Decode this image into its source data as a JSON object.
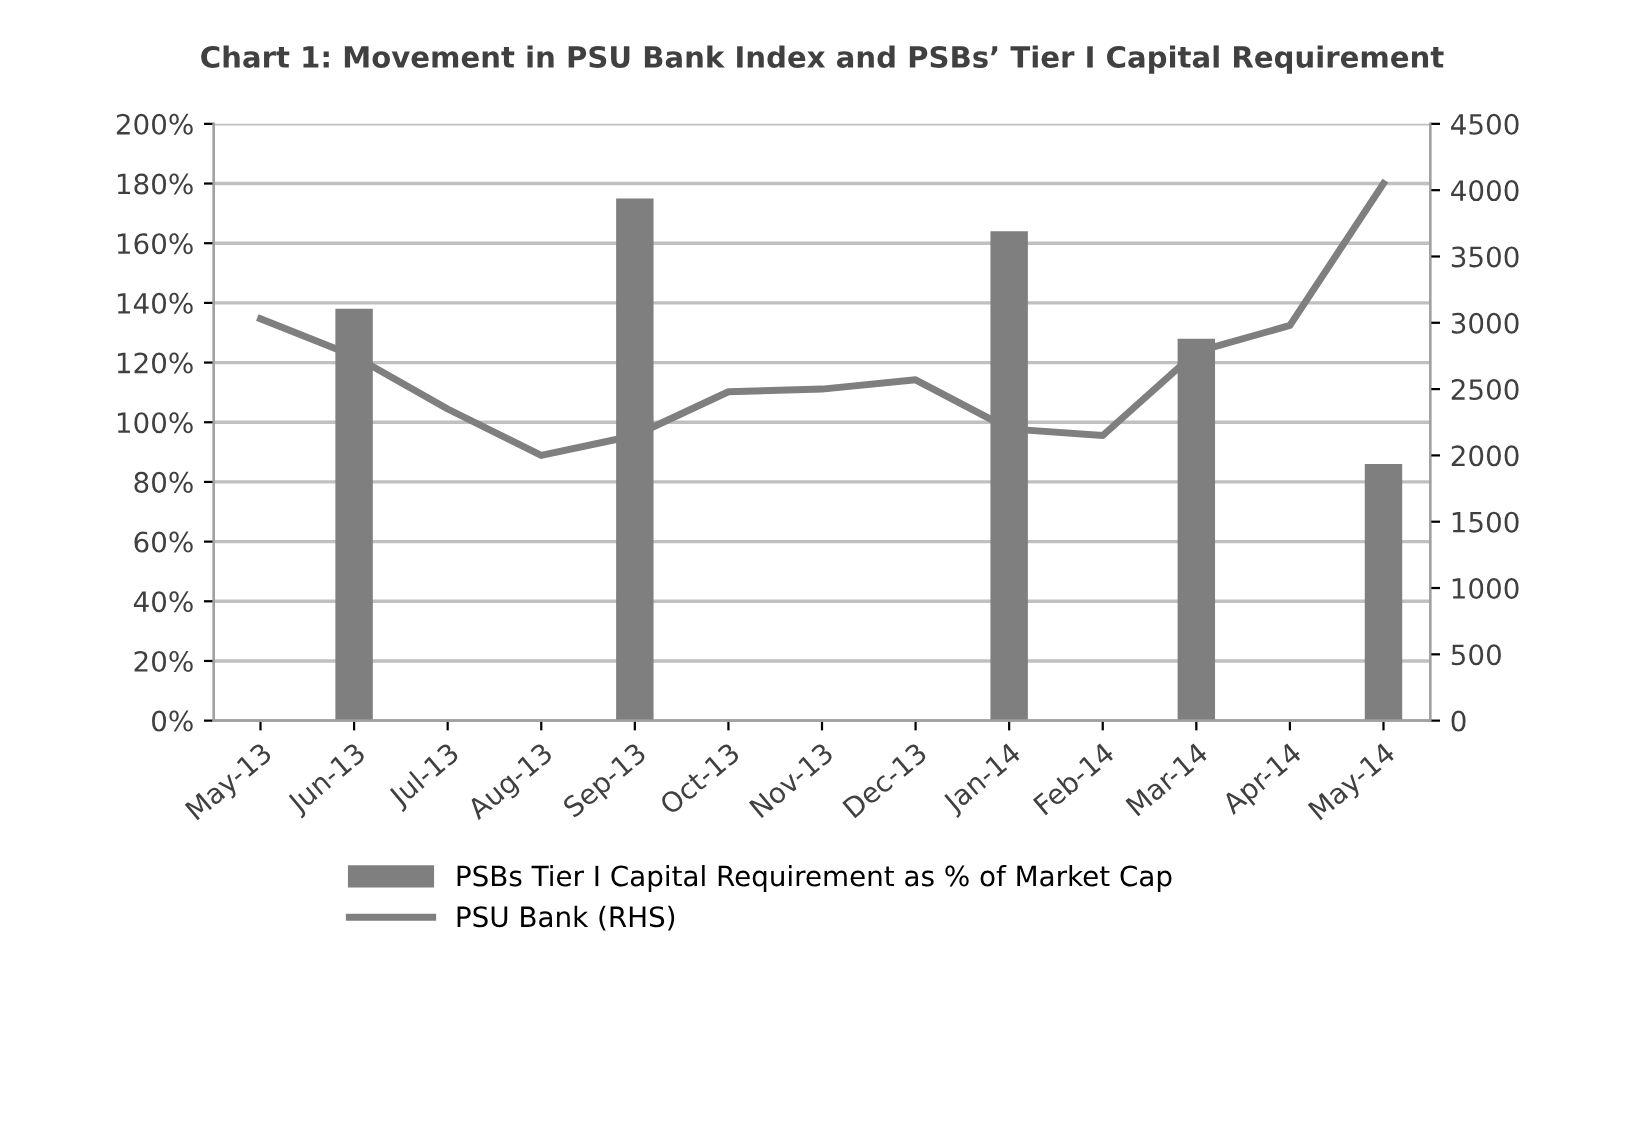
{
  "chart_data": {
    "type": "bar",
    "title": "Chart 1: Movement in PSU Bank Index and PSBs’ Tier I Capital Requirement",
    "categories": [
      "May-13",
      "Jun-13",
      "Jul-13",
      "Aug-13",
      "Sep-13",
      "Oct-13",
      "Nov-13",
      "Dec-13",
      "Jan-14",
      "Feb-14",
      "Mar-14",
      "Apr-14",
      "May-14"
    ],
    "series": [
      {
        "name": "PSBs Tier I Capital Requirement as % of Market Cap",
        "color": "#7f7f7f",
        "values": [
          null,
          138,
          null,
          null,
          175,
          null,
          null,
          null,
          164,
          null,
          128,
          null,
          86
        ]
      },
      {
        "name": "PSU Bank (RHS)",
        "type": "line",
        "axis": "y2",
        "color": "#7f7f7f",
        "values": [
          3030,
          2750,
          2350,
          2000,
          2150,
          2480,
          2500,
          2570,
          2200,
          2150,
          2780,
          2980,
          4050
        ]
      }
    ],
    "ylim": [
      0,
      200
    ],
    "yticks": [
      {
        "value": 0,
        "label": "0%"
      },
      {
        "value": 20,
        "label": "20%"
      },
      {
        "value": 40,
        "label": "40%"
      },
      {
        "value": 60,
        "label": "60%"
      },
      {
        "value": 80,
        "label": "80%"
      },
      {
        "value": 100,
        "label": "100%"
      },
      {
        "value": 120,
        "label": "120%"
      },
      {
        "value": 140,
        "label": "140%"
      },
      {
        "value": 160,
        "label": "160%"
      },
      {
        "value": 180,
        "label": "180%"
      },
      {
        "value": 200,
        "label": "200%"
      }
    ],
    "y2lim": [
      0,
      4500
    ],
    "y2ticks": [
      0,
      500,
      1000,
      1500,
      2000,
      2500,
      3000,
      3500,
      4000,
      4500
    ],
    "grid": "y",
    "legend": "bottom",
    "marker": "none",
    "line_style": "solid"
  }
}
